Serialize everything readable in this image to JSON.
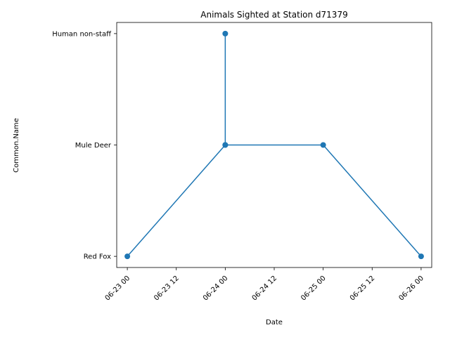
{
  "chart_data": {
    "type": "line",
    "title": "Animals Sighted at Station d71379",
    "xlabel": "Date",
    "ylabel": "Common.Name",
    "x_ticks": [
      "06-23 00",
      "06-23 12",
      "06-24 00",
      "06-24 12",
      "06-25 00",
      "06-25 12",
      "06-26 00"
    ],
    "y_categories": [
      "Red Fox",
      "Mule Deer",
      "Human non-staff"
    ],
    "xlim": [
      "06-22 21:24",
      "06-26 02:36"
    ],
    "series": [
      {
        "color": "#1f77b4",
        "marker": "circle",
        "points": [
          {
            "x": "06-23 00:00",
            "y": "Red Fox"
          },
          {
            "x": "06-24 00:00",
            "y": "Mule Deer"
          },
          {
            "x": "06-24 00:00",
            "y": "Human non-staff"
          },
          {
            "x": "06-24 00:00",
            "y": "Mule Deer"
          },
          {
            "x": "06-25 00:00",
            "y": "Mule Deer"
          },
          {
            "x": "06-26 00:00",
            "y": "Red Fox"
          }
        ]
      }
    ],
    "grid": false,
    "legend": "none"
  }
}
